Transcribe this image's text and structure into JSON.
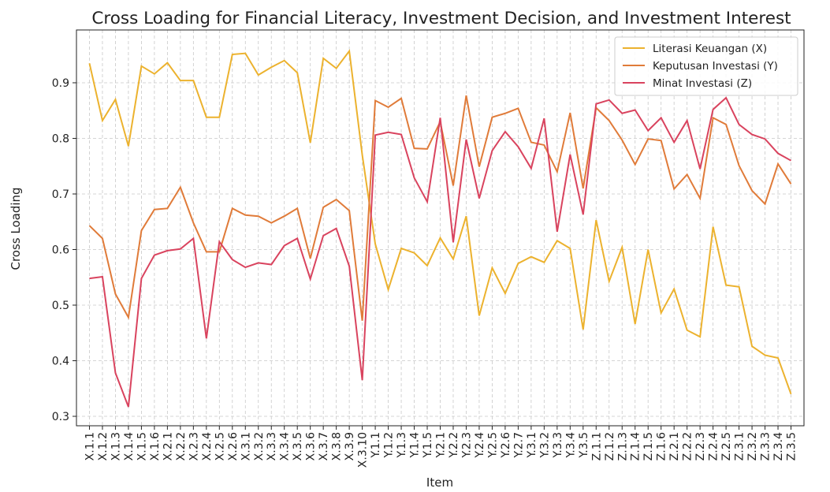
{
  "chart_data": {
    "type": "line",
    "title": "Cross Loading for Financial Literacy, Investment Decision, and Investment Interest",
    "x_label": "Item",
    "y_label": "Cross Loading",
    "categories": [
      "X.1.1",
      "X.1.2",
      "X.1.3",
      "X.1.4",
      "X.1.5",
      "X.1.6",
      "X.2.1",
      "X.2.2",
      "X.2.3",
      "X.2.4",
      "X.2.5",
      "X.2.6",
      "X.3.1",
      "X.3.2",
      "X.3.3",
      "X.3.4",
      "X.3.5",
      "X.3.6",
      "X.3.7",
      "X.3.8",
      "X.3.9",
      "X.3.10",
      "Y.1.1",
      "Y.1.2",
      "Y.1.3",
      "Y.1.4",
      "Y.1.5",
      "Y.2.1",
      "Y.2.2",
      "Y.2.3",
      "Y.2.4",
      "Y.2.5",
      "Y.2.6",
      "Y.2.7",
      "Y.3.1",
      "Y.3.2",
      "Y.3.3",
      "Y.3.4",
      "Y.3.5",
      "Z.1.1",
      "Z.1.2",
      "Z.1.3",
      "Z.1.4",
      "Z.1.5",
      "Z.1.6",
      "Z.2.1",
      "Z.2.2",
      "Z.2.3",
      "Z.2.4",
      "Z.2.5",
      "Z.3.1",
      "Z.3.2",
      "Z.3.3",
      "Z.3.4",
      "Z.3.5"
    ],
    "series": [
      {
        "name": "Literasi Keuangan (X)",
        "color": "#ecb22e",
        "values": [
          0.935,
          0.832,
          0.87,
          0.786,
          0.93,
          0.916,
          0.936,
          0.904,
          0.904,
          0.838,
          0.838,
          0.951,
          0.953,
          0.914,
          0.928,
          0.94,
          0.918,
          0.792,
          0.944,
          0.926,
          0.957,
          0.77,
          0.61,
          0.528,
          0.602,
          0.594,
          0.571,
          0.621,
          0.583,
          0.66,
          0.481,
          0.567,
          0.521,
          0.575,
          0.587,
          0.577,
          0.616,
          0.602,
          0.456,
          0.653,
          0.543,
          0.604,
          0.466,
          0.6,
          0.486,
          0.529,
          0.455,
          0.443,
          0.641,
          0.536,
          0.533,
          0.426,
          0.41,
          0.405,
          0.34
        ]
      },
      {
        "name": "Keputusan Investasi (Y)",
        "color": "#e07b39",
        "values": [
          0.643,
          0.62,
          0.52,
          0.478,
          0.634,
          0.672,
          0.674,
          0.712,
          0.648,
          0.596,
          0.596,
          0.674,
          0.662,
          0.66,
          0.648,
          0.66,
          0.674,
          0.584,
          0.676,
          0.69,
          0.67,
          0.472,
          0.868,
          0.856,
          0.872,
          0.782,
          0.781,
          0.83,
          0.715,
          0.877,
          0.749,
          0.838,
          0.845,
          0.854,
          0.793,
          0.788,
          0.74,
          0.846,
          0.71,
          0.855,
          0.832,
          0.797,
          0.753,
          0.799,
          0.796,
          0.709,
          0.735,
          0.692,
          0.837,
          0.825,
          0.751,
          0.706,
          0.682,
          0.754,
          0.718
        ]
      },
      {
        "name": "Minat Investasi (Z)",
        "color": "#d9435e",
        "values": [
          0.548,
          0.551,
          0.378,
          0.317,
          0.548,
          0.59,
          0.598,
          0.601,
          0.62,
          0.44,
          0.614,
          0.582,
          0.568,
          0.576,
          0.573,
          0.607,
          0.62,
          0.547,
          0.625,
          0.638,
          0.57,
          0.365,
          0.806,
          0.811,
          0.807,
          0.729,
          0.686,
          0.837,
          0.613,
          0.798,
          0.692,
          0.778,
          0.812,
          0.785,
          0.746,
          0.836,
          0.632,
          0.771,
          0.663,
          0.862,
          0.869,
          0.845,
          0.851,
          0.814,
          0.837,
          0.793,
          0.832,
          0.745,
          0.852,
          0.873,
          0.825,
          0.807,
          0.799,
          0.773,
          0.76
        ]
      }
    ],
    "ylim": [
      0.283,
      0.995
    ],
    "yticks": [
      0.3,
      0.4,
      0.5,
      0.6,
      0.7,
      0.8,
      0.9
    ],
    "grid": true,
    "legend": "upper right"
  }
}
